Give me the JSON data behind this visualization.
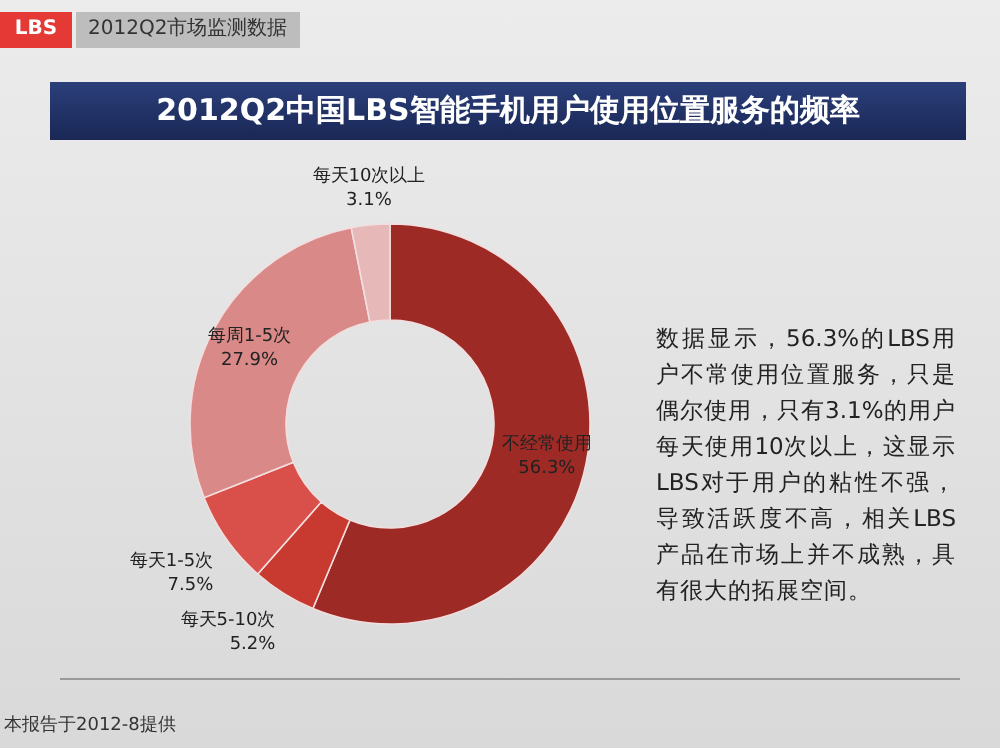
{
  "chart_data": {
    "type": "donut",
    "title": "2012Q2中国LBS智能手机用户使用位置服务的频率",
    "categories": [
      "不经常使用",
      "每天5-10次",
      "每天1-5次",
      "每周1-5次",
      "每天10次以上"
    ],
    "values": [
      56.3,
      5.2,
      7.5,
      27.9,
      3.1
    ],
    "value_labels": [
      "56.3%",
      "5.2%",
      "7.5%",
      "27.9%",
      "3.1%"
    ],
    "colors": [
      "#9e2a26",
      "#c8392f",
      "#d9504a",
      "#d98a88",
      "#e6b8b8"
    ],
    "annotations": [
      "LBS",
      "2012Q2市场监测数据",
      "数据显示，56.3%的LBS用户不常使用位置服务，只是偶尔使用，只有3.1%的用户每天使用10次以上，这显示LBS对于用户的粘性不强，导致活跃度不高，相关LBS产品在市场上并不成熟，具有很大的拓展空间。",
      "本报告于2012-8提供"
    ]
  }
}
